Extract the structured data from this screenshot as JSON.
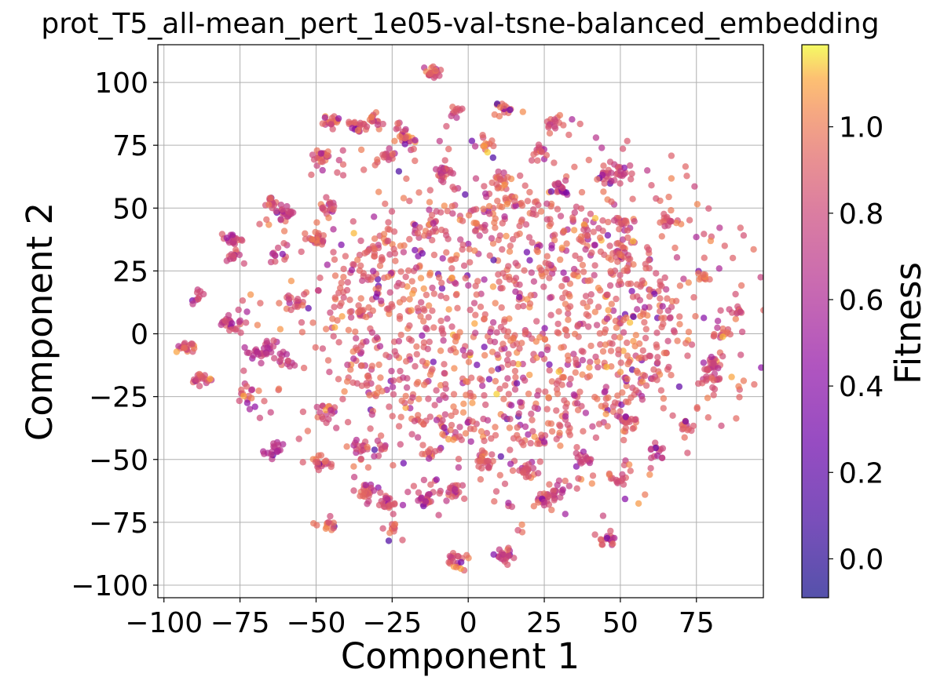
{
  "chart_data": {
    "type": "scatter",
    "title": "prot_T5_all-mean_pert_1e05-val-tsne-balanced_embedding",
    "xlabel": "Component 1",
    "ylabel": "Component 2",
    "xlim": [
      -102,
      97
    ],
    "ylim": [
      -105,
      115
    ],
    "xticks": [
      -100,
      -75,
      -50,
      -25,
      0,
      25,
      50,
      75
    ],
    "yticks": [
      -100,
      -75,
      -50,
      -25,
      0,
      25,
      50,
      75,
      100
    ],
    "xtick_labels": [
      "−100",
      "−75",
      "−50",
      "−25",
      "0",
      "25",
      "50",
      "75"
    ],
    "ytick_labels": [
      "−100",
      "−75",
      "−50",
      "−25",
      "0",
      "25",
      "50",
      "75",
      "100"
    ],
    "grid": true,
    "colormap": "plasma",
    "point_alpha": 0.7,
    "colorbar": {
      "label": "Fitness",
      "range": [
        -0.09,
        1.19
      ],
      "ticks": [
        0.0,
        0.2,
        0.4,
        0.6,
        0.8,
        1.0
      ],
      "tick_labels": [
        "0.0",
        "0.2",
        "0.4",
        "0.6",
        "0.8",
        "1.0"
      ]
    },
    "clusters": [
      {
        "x": -12,
        "y": 104,
        "fitness": 0.92
      },
      {
        "x": -45,
        "y": 84,
        "fitness": 0.9
      },
      {
        "x": -37,
        "y": 83,
        "fitness": 0.88
      },
      {
        "x": -30,
        "y": 86,
        "fitness": 0.9
      },
      {
        "x": -5,
        "y": 89,
        "fitness": 0.85
      },
      {
        "x": 11,
        "y": 89,
        "fitness": 0.95
      },
      {
        "x": 28,
        "y": 84,
        "fitness": 0.85
      },
      {
        "x": -20,
        "y": 78,
        "fitness": 0.95
      },
      {
        "x": -48,
        "y": 70,
        "fitness": 0.9
      },
      {
        "x": -27,
        "y": 71,
        "fitness": 0.88
      },
      {
        "x": 5,
        "y": 75,
        "fitness": 0.95
      },
      {
        "x": 23,
        "y": 72,
        "fitness": 0.9
      },
      {
        "x": -8,
        "y": 64,
        "fitness": 0.85
      },
      {
        "x": 11,
        "y": 61,
        "fitness": 0.92
      },
      {
        "x": 30,
        "y": 58,
        "fitness": 0.8
      },
      {
        "x": 50,
        "y": 65,
        "fitness": 0.8
      },
      {
        "x": 44,
        "y": 63,
        "fitness": 0.78
      },
      {
        "x": -65,
        "y": 52,
        "fitness": 0.85
      },
      {
        "x": -60,
        "y": 48,
        "fitness": 0.8
      },
      {
        "x": -46,
        "y": 51,
        "fitness": 0.88
      },
      {
        "x": 66,
        "y": 45,
        "fitness": 0.88
      },
      {
        "x": 52,
        "y": 44,
        "fitness": 0.85
      },
      {
        "x": -77,
        "y": 38,
        "fitness": 0.85
      },
      {
        "x": -50,
        "y": 38,
        "fitness": 0.9
      },
      {
        "x": -62,
        "y": 32,
        "fitness": 0.82
      },
      {
        "x": -78,
        "y": 31,
        "fitness": 0.8
      },
      {
        "x": 50,
        "y": 31,
        "fitness": 0.9
      },
      {
        "x": 78,
        "y": 23,
        "fitness": 0.92
      },
      {
        "x": -89,
        "y": 15,
        "fitness": 0.85
      },
      {
        "x": -57,
        "y": 13,
        "fitness": 0.82
      },
      {
        "x": -65,
        "y": -5,
        "fitness": 0.72
      },
      {
        "x": -70,
        "y": -8,
        "fitness": 0.7
      },
      {
        "x": -60,
        "y": -10,
        "fitness": 0.75
      },
      {
        "x": -78,
        "y": 4,
        "fitness": 0.8
      },
      {
        "x": -93,
        "y": -5,
        "fitness": 0.88
      },
      {
        "x": -88,
        "y": -18,
        "fitness": 0.9
      },
      {
        "x": 88,
        "y": 9,
        "fitness": 0.85
      },
      {
        "x": 83,
        "y": 0,
        "fitness": 0.9
      },
      {
        "x": 80,
        "y": -12,
        "fitness": 0.85
      },
      {
        "x": 80,
        "y": -18,
        "fitness": 0.88
      },
      {
        "x": 72,
        "y": -36,
        "fitness": 0.9
      },
      {
        "x": -72,
        "y": -25,
        "fitness": 0.9
      },
      {
        "x": -46,
        "y": -32,
        "fitness": 0.85
      },
      {
        "x": -64,
        "y": -47,
        "fitness": 0.62
      },
      {
        "x": -48,
        "y": -52,
        "fitness": 0.9
      },
      {
        "x": -36,
        "y": -46,
        "fitness": 0.82
      },
      {
        "x": -30,
        "y": -45,
        "fitness": 0.85
      },
      {
        "x": -33,
        "y": -63,
        "fitness": 0.88
      },
      {
        "x": -26,
        "y": -68,
        "fitness": 0.85
      },
      {
        "x": -46,
        "y": -76,
        "fitness": 0.95
      },
      {
        "x": -25,
        "y": -78,
        "fitness": 0.9
      },
      {
        "x": -14,
        "y": -65,
        "fitness": 0.75
      },
      {
        "x": -5,
        "y": -62,
        "fitness": 0.88
      },
      {
        "x": 29,
        "y": -63,
        "fitness": 0.7
      },
      {
        "x": 25,
        "y": -66,
        "fitness": 0.82
      },
      {
        "x": 45,
        "y": -82,
        "fitness": 0.88
      },
      {
        "x": 50,
        "y": -58,
        "fitness": 0.8
      },
      {
        "x": 62,
        "y": -46,
        "fitness": 0.78
      },
      {
        "x": 52,
        "y": -35,
        "fitness": 0.85
      },
      {
        "x": 12,
        "y": -88,
        "fitness": 0.85
      },
      {
        "x": -4,
        "y": -90,
        "fitness": 0.92
      },
      {
        "x": -13,
        "y": -47,
        "fitness": 0.88
      },
      {
        "x": 5,
        "y": -50,
        "fitness": 0.92
      },
      {
        "x": 20,
        "y": -55,
        "fitness": 0.88
      },
      {
        "x": 38,
        "y": -50,
        "fitness": 0.82
      }
    ],
    "core": {
      "x": [
        -45,
        70
      ],
      "y": [
        -45,
        55
      ],
      "fitness_mean": 0.92
    }
  }
}
